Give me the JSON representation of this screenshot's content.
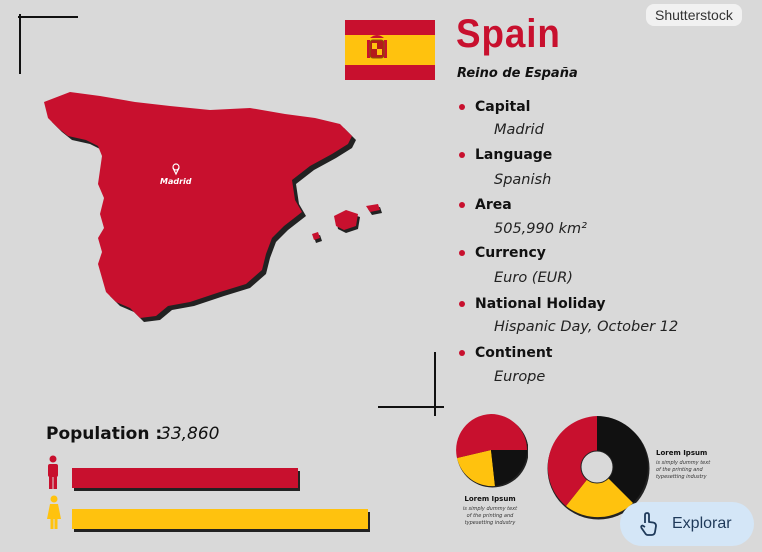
{
  "watermark": "Shutterstock",
  "header": {
    "title": "Spain",
    "subtitle": "Reino de España"
  },
  "map": {
    "city_label": "Madrid",
    "fill_color": "#c8102e"
  },
  "info": [
    {
      "label": "Capital",
      "value": "Madrid"
    },
    {
      "label": "Language",
      "value": "Spanish"
    },
    {
      "label": "Area",
      "value": "505,990 km²"
    },
    {
      "label": "Currency",
      "value": "Euro (EUR)"
    },
    {
      "label": "National Holiday",
      "value": "Hispanic Day, October 12"
    },
    {
      "label": "Continent",
      "value": "Europe"
    }
  ],
  "population": {
    "label": "Population :",
    "value": "33,860",
    "male_color": "#c8102e",
    "female_color": "#ffc20e"
  },
  "charts": [
    {
      "title": "Lorem Ipsum",
      "text": "is simply dummy text of the printing and typesetting industry"
    },
    {
      "title": "Lorem Ipsum",
      "text": "is simply dummy text of the printing and typesetting industry"
    }
  ],
  "explore_button": {
    "label": "Explorar",
    "icon": "touch-icon"
  },
  "colors": {
    "red": "#c8102e",
    "yellow": "#ffc20e",
    "black": "#111111"
  }
}
